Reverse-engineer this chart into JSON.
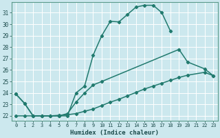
{
  "xlabel": "Humidex (Indice chaleur)",
  "xlim": [
    -0.5,
    23.5
  ],
  "ylim": [
    21.6,
    31.9
  ],
  "xticks": [
    0,
    1,
    2,
    3,
    4,
    5,
    6,
    7,
    8,
    9,
    10,
    11,
    12,
    13,
    14,
    15,
    16,
    17,
    18,
    19,
    20,
    21,
    22,
    23
  ],
  "yticks": [
    22,
    23,
    24,
    25,
    26,
    27,
    28,
    29,
    30,
    31
  ],
  "bg_color": "#cce8ee",
  "line_color": "#217a6e",
  "grid_color": "#ffffff",
  "lines": [
    {
      "x": [
        0,
        1,
        2,
        3,
        4,
        5,
        6,
        7,
        8,
        9,
        10,
        11,
        12,
        13,
        14,
        15,
        16,
        17,
        18
      ],
      "y": [
        23.9,
        23.1,
        22.0,
        22.0,
        22.0,
        22.0,
        22.0,
        24.0,
        24.6,
        27.3,
        29.0,
        30.25,
        30.2,
        30.85,
        31.5,
        31.65,
        31.65,
        31.0,
        29.4
      ]
    },
    {
      "x": [
        0,
        1,
        2,
        3,
        4,
        5,
        6,
        7,
        8,
        9,
        10,
        19,
        20,
        22,
        23
      ],
      "y": [
        23.9,
        23.1,
        22.0,
        22.0,
        22.0,
        22.0,
        22.2,
        23.2,
        24.0,
        24.7,
        25.0,
        27.8,
        26.7,
        26.1,
        25.5
      ]
    },
    {
      "x": [
        0,
        1,
        2,
        3,
        4,
        5,
        6,
        7,
        8,
        9,
        10,
        11,
        12,
        13,
        14,
        15,
        16,
        17,
        18,
        19,
        20,
        22,
        23
      ],
      "y": [
        22.0,
        22.0,
        22.0,
        22.0,
        22.0,
        22.05,
        22.1,
        22.2,
        22.4,
        22.6,
        22.9,
        23.2,
        23.45,
        23.75,
        24.05,
        24.35,
        24.6,
        24.85,
        25.1,
        25.35,
        25.55,
        25.8,
        25.5
      ]
    }
  ]
}
